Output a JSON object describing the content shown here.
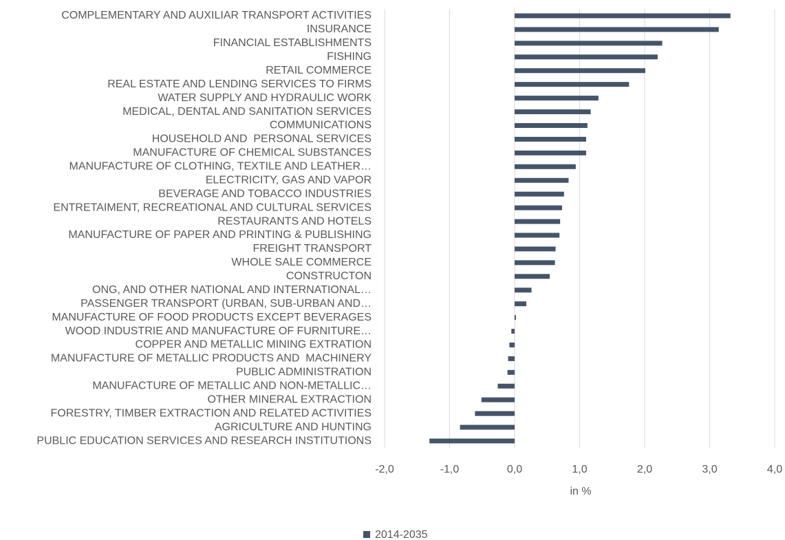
{
  "chart_data": {
    "type": "barh",
    "categories": [
      "COMPLEMENTARY AND AUXILIAR TRANSPORT ACTIVITIES",
      "INSURANCE",
      "FINANCIAL ESTABLISHMENTS",
      "FISHING",
      "RETAIL COMMERCE",
      "REAL ESTATE AND LENDING SERVICES TO FIRMS",
      "WATER SUPPLY AND HYDRAULIC WORK",
      "MEDICAL, DENTAL AND SANITATION SERVICES",
      "COMMUNICATIONS",
      "HOUSEHOLD AND  PERSONAL SERVICES",
      "MANUFACTURE OF CHEMICAL SUBSTANCES",
      "MANUFACTURE OF CLOTHING, TEXTILE AND LEATHER…",
      "ELECTRICITY, GAS AND VAPOR",
      "BEVERAGE AND TOBACCO INDUSTRIES",
      "ENTRETAIMENT, RECREATIONAL AND CULTURAL SERVICES",
      "RESTAURANTS AND HOTELS",
      "MANUFACTURE OF PAPER AND PRINTING & PUBLISHING",
      "FREIGHT TRANSPORT",
      "WHOLE SALE COMMERCE",
      "CONSTRUCTON",
      "ONG, AND OTHER NATIONAL AND INTERNATIONAL…",
      "PASSENGER TRANSPORT (URBAN, SUB-URBAN AND…",
      "MANUFACTURE OF FOOD PRODUCTS EXCEPT BEVERAGES",
      "WOOD INDUSTRIE AND MANUFACTURE OF FURNITURE…",
      "COPPER AND METALLIC MINING EXTRATION",
      "MANUFACTURE OF METALLIC PRODUCTS AND  MACHINERY",
      "PUBLIC ADMINISTRATION",
      "MANUFACTURE OF METALLIC AND NON-METALLIC…",
      "OTHER MINERAL EXTRACTION",
      "FORESTRY, TIMBER EXTRACTION AND RELATED ACTIVITIES",
      "AGRICULTURE AND HUNTING",
      "PUBLIC EDUCATION SERVICES AND RESEARCH INSTITUTIONS"
    ],
    "series": [
      {
        "name": "2014-2035",
        "color": "#44546a",
        "values": [
          3.32,
          3.14,
          2.27,
          2.2,
          2.01,
          1.76,
          1.29,
          1.17,
          1.12,
          1.1,
          1.1,
          0.94,
          0.83,
          0.76,
          0.73,
          0.7,
          0.69,
          0.63,
          0.62,
          0.54,
          0.26,
          0.18,
          0.02,
          -0.05,
          -0.08,
          -0.1,
          -0.11,
          -0.26,
          -0.51,
          -0.61,
          -0.84,
          -1.31
        ]
      }
    ],
    "xlabel": "in %",
    "xlim": [
      -2,
      4
    ],
    "xticks": [
      {
        "value": -2,
        "label": "-2,0"
      },
      {
        "value": -1,
        "label": "-1,0"
      },
      {
        "value": 0,
        "label": "0,0"
      },
      {
        "value": 1,
        "label": "1,0"
      },
      {
        "value": 2,
        "label": "2,0"
      },
      {
        "value": 3,
        "label": "3,0"
      },
      {
        "value": 4,
        "label": "4,0"
      }
    ],
    "grid": true,
    "legend": "bottom"
  }
}
